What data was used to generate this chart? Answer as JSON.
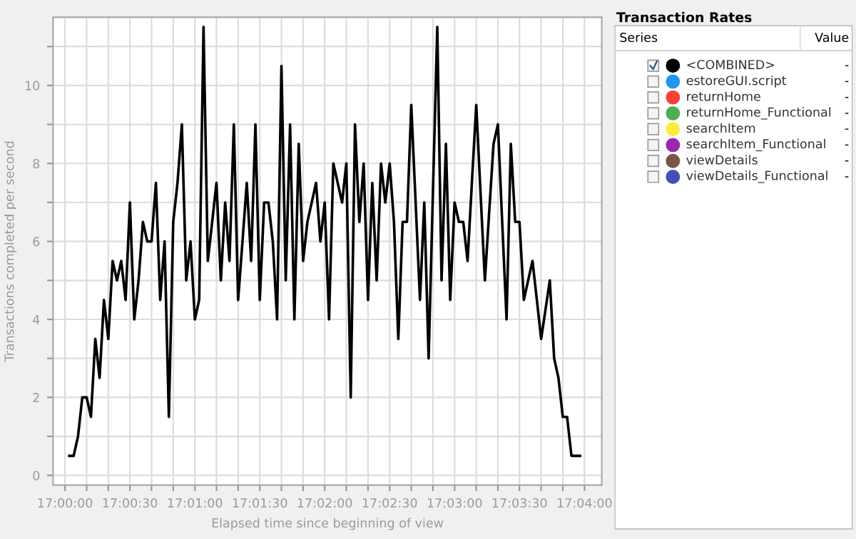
{
  "chart_data": {
    "type": "line",
    "xlabel": "Elapsed time since beginning of view",
    "ylabel": "Transactions completed per second",
    "legend_title": "Transaction Rates",
    "annotations": [
      "Series",
      "Value",
      "-",
      "-",
      "-",
      "-",
      "-",
      "-",
      "-",
      "-"
    ],
    "x": [
      17.00056,
      17.00111,
      17.00167,
      17.00222,
      17.00278,
      17.00333,
      17.00389,
      17.00444,
      17.005,
      17.00556,
      17.00611,
      17.00667,
      17.00722,
      17.00778,
      17.00833,
      17.00889,
      17.00944,
      17.01,
      17.01056,
      17.01111,
      17.01167,
      17.01222,
      17.01278,
      17.01333,
      17.01389,
      17.01444,
      17.015,
      17.01556,
      17.01611,
      17.01667,
      17.01722,
      17.01778,
      17.01833,
      17.01889,
      17.01944,
      17.02,
      17.02056,
      17.02111,
      17.02167,
      17.02222,
      17.02278,
      17.02333,
      17.02389,
      17.02444,
      17.025,
      17.02556,
      17.02611,
      17.02667,
      17.02722,
      17.02778,
      17.02833,
      17.02889,
      17.02944,
      17.03,
      17.03056,
      17.03111,
      17.03167,
      17.03222,
      17.03278,
      17.03333,
      17.03389,
      17.03444,
      17.035,
      17.03556,
      17.03611,
      17.03667,
      17.03722,
      17.03778,
      17.03833,
      17.03889,
      17.03944,
      17.04,
      17.04056,
      17.04111,
      17.04167,
      17.04222,
      17.04278,
      17.04333,
      17.04389,
      17.04444,
      17.045,
      17.04556,
      17.04611,
      17.04667,
      17.04722,
      17.04778,
      17.04833,
      17.04889,
      17.04944,
      17.05,
      17.05056,
      17.05111,
      17.05167,
      17.05222,
      17.05278,
      17.05333,
      17.05389,
      17.05444,
      17.055,
      17.05556,
      17.05611,
      17.05667,
      17.05722,
      17.05778,
      17.05833,
      17.05889,
      17.05944,
      17.06,
      17.06056,
      17.06111,
      17.06167,
      17.06222,
      17.06278,
      17.06333,
      17.06389,
      17.06444,
      17.065,
      17.06556,
      17.06611
    ],
    "series": [
      {
        "name": "<COMBINED>",
        "color": "#000000",
        "values": [
          0.5,
          0.5,
          1,
          2,
          2,
          1.5,
          3.5,
          2.5,
          4.5,
          3.5,
          5.5,
          5,
          5.5,
          4.5,
          7,
          4,
          5,
          6.5,
          6,
          6,
          7.5,
          4.5,
          6,
          1.5,
          6.5,
          7.5,
          9,
          5,
          6,
          4,
          4.5,
          11.5,
          5.5,
          6.5,
          7.5,
          5,
          7,
          5.5,
          9,
          4.5,
          6,
          7.5,
          5.5,
          9,
          4.5,
          7,
          7,
          6,
          4,
          10.5,
          5,
          9,
          4,
          8.5,
          5.5,
          6.5,
          7,
          7.5,
          6,
          7,
          4,
          8,
          7.5,
          7,
          8,
          2,
          9,
          6.5,
          8,
          4.5,
          7.5,
          5,
          8,
          7,
          8,
          6.5,
          3.5,
          6.5,
          6.5,
          9.5,
          7,
          4.5,
          7,
          3,
          7.25,
          11.5,
          5,
          8.5,
          4.5,
          7,
          6.5,
          6.5,
          5.5,
          7.5,
          9.5,
          7.25,
          5,
          6.75,
          8.5,
          9,
          6.5,
          4,
          8.5,
          6.5,
          6.5,
          4.5,
          5,
          5.5,
          4.5,
          3.5,
          4.25,
          5,
          3,
          2.5,
          1.5,
          1.5,
          0.5,
          0.5,
          0.5
        ]
      },
      {
        "name": "estoreGUI.script",
        "color": "#2196f3",
        "values": [
          null,
          null,
          null,
          null,
          null,
          null,
          null,
          null,
          null,
          null,
          null,
          null,
          null,
          null,
          null,
          null,
          null,
          null,
          null,
          null,
          null,
          null,
          null,
          null,
          null,
          null,
          null,
          null,
          null,
          null,
          null,
          null,
          null,
          null,
          null,
          null,
          null,
          null,
          null,
          null,
          null,
          null,
          null,
          null,
          null,
          null,
          null,
          null,
          null,
          null,
          null,
          null,
          null,
          null,
          null,
          null,
          null,
          null,
          null,
          null,
          null,
          null,
          null,
          null,
          null,
          null,
          null,
          null,
          null,
          null,
          null,
          null,
          null,
          null,
          null,
          null,
          null,
          null,
          null,
          null,
          null,
          null,
          null,
          null,
          null,
          null,
          null,
          null,
          null,
          null,
          null,
          null,
          null,
          null,
          null,
          null,
          null,
          null,
          null,
          null,
          null,
          null,
          null,
          null,
          null,
          null,
          null,
          null,
          null,
          null,
          null,
          null,
          null,
          null,
          null,
          null,
          null,
          null,
          null
        ]
      },
      {
        "name": "returnHome",
        "color": "#f44336",
        "values": [
          null,
          null,
          null,
          null,
          null,
          null,
          null,
          null,
          null,
          null,
          null,
          null,
          null,
          null,
          null,
          null,
          null,
          null,
          null,
          null,
          null,
          null,
          null,
          null,
          null,
          null,
          null,
          null,
          null,
          null,
          null,
          null,
          null,
          null,
          null,
          null,
          null,
          null,
          null,
          null,
          null,
          null,
          null,
          null,
          null,
          null,
          null,
          null,
          null,
          null,
          null,
          null,
          null,
          null,
          null,
          null,
          null,
          null,
          null,
          null,
          null,
          null,
          null,
          null,
          null,
          null,
          null,
          null,
          null,
          null,
          null,
          null,
          null,
          null,
          null,
          null,
          null,
          null,
          null,
          null,
          null,
          null,
          null,
          null,
          null,
          null,
          null,
          null,
          null,
          null,
          null,
          null,
          null,
          null,
          null,
          null,
          null,
          null,
          null,
          null,
          null,
          null,
          null,
          null,
          null,
          null,
          null,
          null,
          null,
          null,
          null,
          null,
          null,
          null,
          null,
          null,
          null,
          null,
          null
        ]
      },
      {
        "name": "returnHome_Functional",
        "color": "#4caf50",
        "values": [
          null,
          null,
          null,
          null,
          null,
          null,
          null,
          null,
          null,
          null,
          null,
          null,
          null,
          null,
          null,
          null,
          null,
          null,
          null,
          null,
          null,
          null,
          null,
          null,
          null,
          null,
          null,
          null,
          null,
          null,
          null,
          null,
          null,
          null,
          null,
          null,
          null,
          null,
          null,
          null,
          null,
          null,
          null,
          null,
          null,
          null,
          null,
          null,
          null,
          null,
          null,
          null,
          null,
          null,
          null,
          null,
          null,
          null,
          null,
          null,
          null,
          null,
          null,
          null,
          null,
          null,
          null,
          null,
          null,
          null,
          null,
          null,
          null,
          null,
          null,
          null,
          null,
          null,
          null,
          null,
          null,
          null,
          null,
          null,
          null,
          null,
          null,
          null,
          null,
          null,
          null,
          null,
          null,
          null,
          null,
          null,
          null,
          null,
          null,
          null,
          null,
          null,
          null,
          null,
          null,
          null,
          null,
          null,
          null,
          null,
          null,
          null,
          null,
          null,
          null,
          null,
          null,
          null,
          null
        ]
      },
      {
        "name": "searchItem",
        "color": "#ffeb3b",
        "values": [
          null,
          null,
          null,
          null,
          null,
          null,
          null,
          null,
          null,
          null,
          null,
          null,
          null,
          null,
          null,
          null,
          null,
          null,
          null,
          null,
          null,
          null,
          null,
          null,
          null,
          null,
          null,
          null,
          null,
          null,
          null,
          null,
          null,
          null,
          null,
          null,
          null,
          null,
          null,
          null,
          null,
          null,
          null,
          null,
          null,
          null,
          null,
          null,
          null,
          null,
          null,
          null,
          null,
          null,
          null,
          null,
          null,
          null,
          null,
          null,
          null,
          null,
          null,
          null,
          null,
          null,
          null,
          null,
          null,
          null,
          null,
          null,
          null,
          null,
          null,
          null,
          null,
          null,
          null,
          null,
          null,
          null,
          null,
          null,
          null,
          null,
          null,
          null,
          null,
          null,
          null,
          null,
          null,
          null,
          null,
          null,
          null,
          null,
          null,
          null,
          null,
          null,
          null,
          null,
          null,
          null,
          null,
          null,
          null,
          null,
          null,
          null,
          null,
          null,
          null,
          null,
          null,
          null,
          null
        ]
      },
      {
        "name": "searchItem_Functional",
        "color": "#9c27b0",
        "values": [
          null,
          null,
          null,
          null,
          null,
          null,
          null,
          null,
          null,
          null,
          null,
          null,
          null,
          null,
          null,
          null,
          null,
          null,
          null,
          null,
          null,
          null,
          null,
          null,
          null,
          null,
          null,
          null,
          null,
          null,
          null,
          null,
          null,
          null,
          null,
          null,
          null,
          null,
          null,
          null,
          null,
          null,
          null,
          null,
          null,
          null,
          null,
          null,
          null,
          null,
          null,
          null,
          null,
          null,
          null,
          null,
          null,
          null,
          null,
          null,
          null,
          null,
          null,
          null,
          null,
          null,
          null,
          null,
          null,
          null,
          null,
          null,
          null,
          null,
          null,
          null,
          null,
          null,
          null,
          null,
          null,
          null,
          null,
          null,
          null,
          null,
          null,
          null,
          null,
          null,
          null,
          null,
          null,
          null,
          null,
          null,
          null,
          null,
          null,
          null,
          null,
          null,
          null,
          null,
          null,
          null,
          null,
          null,
          null,
          null,
          null,
          null,
          null,
          null,
          null,
          null,
          null,
          null,
          null
        ]
      },
      {
        "name": "viewDetails",
        "color": "#795548",
        "values": [
          null,
          null,
          null,
          null,
          null,
          null,
          null,
          null,
          null,
          null,
          null,
          null,
          null,
          null,
          null,
          null,
          null,
          null,
          null,
          null,
          null,
          null,
          null,
          null,
          null,
          null,
          null,
          null,
          null,
          null,
          null,
          null,
          null,
          null,
          null,
          null,
          null,
          null,
          null,
          null,
          null,
          null,
          null,
          null,
          null,
          null,
          null,
          null,
          null,
          null,
          null,
          null,
          null,
          null,
          null,
          null,
          null,
          null,
          null,
          null,
          null,
          null,
          null,
          null,
          null,
          null,
          null,
          null,
          null,
          null,
          null,
          null,
          null,
          null,
          null,
          null,
          null,
          null,
          null,
          null,
          null,
          null,
          null,
          null,
          null,
          null,
          null,
          null,
          null,
          null,
          null,
          null,
          null,
          null,
          null,
          null,
          null,
          null,
          null,
          null,
          null,
          null,
          null,
          null,
          null,
          null,
          null,
          null,
          null,
          null,
          null,
          null,
          null,
          null,
          null,
          null,
          null,
          null,
          null
        ]
      },
      {
        "name": "viewDetails_Functional",
        "color": "#3f51b5",
        "values": [
          null,
          null,
          null,
          null,
          null,
          null,
          null,
          null,
          null,
          null,
          null,
          null,
          null,
          null,
          null,
          null,
          null,
          null,
          null,
          null,
          null,
          null,
          null,
          null,
          null,
          null,
          null,
          null,
          null,
          null,
          null,
          null,
          null,
          null,
          null,
          null,
          null,
          null,
          null,
          null,
          null,
          null,
          null,
          null,
          null,
          null,
          null,
          null,
          null,
          null,
          null,
          null,
          null,
          null,
          null,
          null,
          null,
          null,
          null,
          null,
          null,
          null,
          null,
          null,
          null,
          null,
          null,
          null,
          null,
          null,
          null,
          null,
          null,
          null,
          null,
          null,
          null,
          null,
          null,
          null,
          null,
          null,
          null,
          null,
          null,
          null,
          null,
          null,
          null,
          null,
          null,
          null,
          null,
          null,
          null,
          null,
          null,
          null,
          null,
          null,
          null,
          null,
          null,
          null,
          null,
          null,
          null,
          null,
          null,
          null,
          null,
          null,
          null,
          null,
          null,
          null,
          null,
          null,
          null
        ]
      }
    ],
    "xlim": [
      16.99847,
      17.06889
    ],
    "xticks": [
      {
        "value": 17.0,
        "label": "17:00:00"
      },
      {
        "value": 17.00278,
        "label": null
      },
      {
        "value": 17.00556,
        "label": null
      },
      {
        "value": 17.00833,
        "label": "17:00:30"
      },
      {
        "value": 17.01111,
        "label": null
      },
      {
        "value": 17.01389,
        "label": null
      },
      {
        "value": 17.01667,
        "label": "17:01:00"
      },
      {
        "value": 17.01944,
        "label": null
      },
      {
        "value": 17.02222,
        "label": null
      },
      {
        "value": 17.025,
        "label": "17:01:30"
      },
      {
        "value": 17.02778,
        "label": null
      },
      {
        "value": 17.03056,
        "label": null
      },
      {
        "value": 17.03333,
        "label": "17:02:00"
      },
      {
        "value": 17.03611,
        "label": null
      },
      {
        "value": 17.03889,
        "label": null
      },
      {
        "value": 17.04167,
        "label": "17:02:30"
      },
      {
        "value": 17.04444,
        "label": null
      },
      {
        "value": 17.04722,
        "label": null
      },
      {
        "value": 17.05,
        "label": "17:03:00"
      },
      {
        "value": 17.05278,
        "label": null
      },
      {
        "value": 17.05556,
        "label": null
      },
      {
        "value": 17.05833,
        "label": "17:03:30"
      },
      {
        "value": 17.06111,
        "label": null
      },
      {
        "value": 17.06389,
        "label": null
      },
      {
        "value": 17.06667,
        "label": "17:04:00"
      }
    ],
    "ylim": [
      -0.25,
      11.75
    ],
    "yticks": [
      0,
      {
        "value": 1,
        "label": null
      },
      2,
      {
        "value": 3,
        "label": null
      },
      4,
      {
        "value": 5,
        "label": null
      },
      6,
      {
        "value": 7,
        "label": null
      },
      8,
      {
        "value": 9,
        "label": null
      },
      10,
      {
        "value": 11,
        "label": null
      }
    ],
    "grid": true,
    "legend": "right",
    "marker": "none",
    "line_style": "solid"
  }
}
